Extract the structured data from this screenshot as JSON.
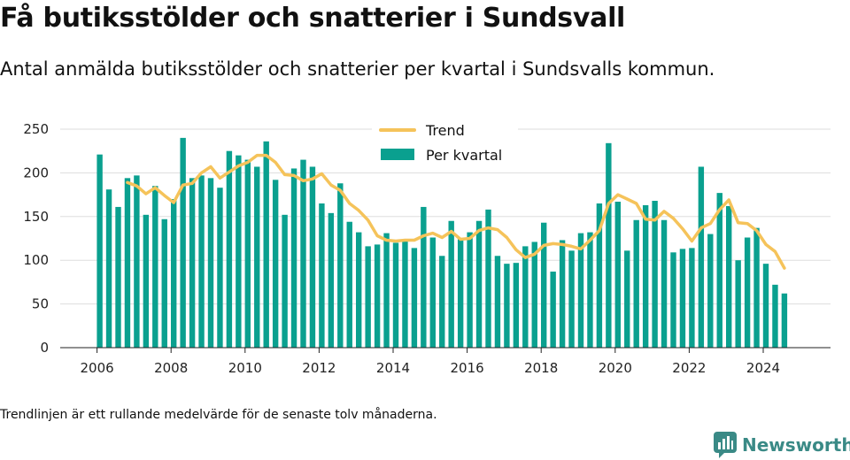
{
  "title": "Få butiksstölder och snatterier i Sundsvall",
  "subtitle": "Antal anmälda butiksstölder och snatterier per kvartal i Sundsvalls kommun.",
  "footnote": "Trendlinjen är ett rullande medelvärde för de senaste tolv månaderna.",
  "brand": {
    "name": "Newsworthy",
    "icon": "newsworthy-logo-icon",
    "color": "#3a8a86"
  },
  "colors": {
    "bars": "#0aa08f",
    "trend": "#f5c35a",
    "grid": "#dddddd"
  },
  "chart_data": {
    "type": "bar",
    "x_tick_labels": [
      "2006",
      "2008",
      "2010",
      "2012",
      "2014",
      "2016",
      "2018",
      "2020",
      "2022",
      "2024"
    ],
    "ylim": [
      0,
      250
    ],
    "y_ticks": [
      0,
      50,
      100,
      150,
      200,
      250
    ],
    "grid": true,
    "legend_position": "top-center",
    "legend": [
      "Trend",
      "Per kvartal"
    ],
    "series": [
      {
        "name": "Per kvartal",
        "kind": "bar",
        "start": "2006-Q1",
        "values": [
          221,
          181,
          161,
          194,
          197,
          152,
          185,
          147,
          170,
          240,
          194,
          197,
          194,
          183,
          225,
          220,
          215,
          207,
          236,
          192,
          152,
          205,
          215,
          207,
          165,
          154,
          188,
          144,
          132,
          116,
          118,
          131,
          120,
          124,
          114,
          161,
          126,
          105,
          145,
          124,
          132,
          145,
          158,
          105,
          96,
          97,
          116,
          121,
          143,
          87,
          123,
          111,
          131,
          132,
          165,
          234,
          167,
          111,
          146,
          163,
          168,
          146,
          109,
          113,
          114,
          207,
          130,
          177,
          162,
          100,
          126,
          137,
          96,
          72,
          62
        ]
      },
      {
        "name": "Trend",
        "kind": "line",
        "start": "2006-Q4",
        "values": [
          189,
          185,
          176,
          183,
          174,
          166,
          186,
          188,
          200,
          207,
          194,
          201,
          208,
          212,
          220,
          220,
          212,
          198,
          197,
          191,
          193,
          199,
          186,
          180,
          165,
          157,
          146,
          128,
          123,
          122,
          123,
          123,
          128,
          131,
          126,
          133,
          124,
          125,
          134,
          137,
          135,
          126,
          112,
          103,
          107,
          117,
          119,
          118,
          116,
          113,
          123,
          134,
          165,
          175,
          170,
          165,
          147,
          146,
          156,
          148,
          136,
          122,
          137,
          142,
          158,
          169,
          143,
          142,
          134,
          118,
          110,
          91
        ]
      }
    ]
  }
}
